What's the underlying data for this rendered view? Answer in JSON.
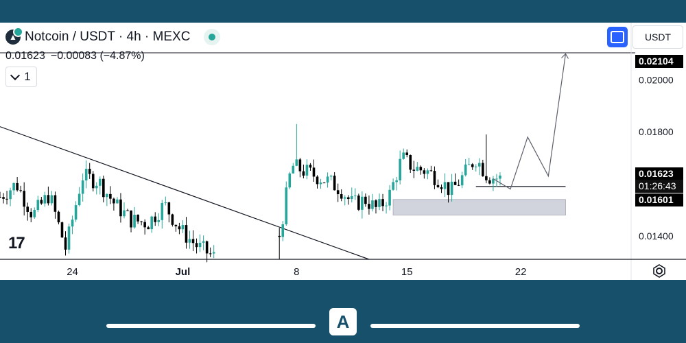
{
  "header": {
    "symbol_title": "Notcoin / USDT · 4h · MEXC",
    "price": "0.01623",
    "change": "−0.00083 (−4.87%)",
    "indicator_count": "1",
    "currency": "USDT"
  },
  "colors": {
    "up": "#26a69a",
    "down": "#000000",
    "frame": "#16506b",
    "accent": "#2962ff"
  },
  "icons": [
    "notcoin-icon",
    "live-status-icon",
    "fullscreen-icon",
    "chevron-down-icon",
    "settings-icon",
    "tradingview-logo",
    "app-logo"
  ],
  "chart_data": {
    "type": "candlestick",
    "title": "Notcoin / USDT · 4h · MEXC",
    "ylim": [
      0.0131,
      0.0222
    ],
    "yticks": [
      "0.02000",
      "0.01800",
      "0.01600",
      "0.01400"
    ],
    "ytick_values": [
      0.02,
      0.018,
      0.016,
      0.014
    ],
    "xticks": [
      "24",
      "Jul",
      "8",
      "15",
      "22"
    ],
    "x_index_range": [
      0,
      183
    ],
    "xtick_index": [
      21,
      53,
      86,
      118,
      151
    ],
    "price_labels": [
      {
        "name": "target",
        "value": 0.02104,
        "text": "0.02104"
      },
      {
        "name": "last",
        "value": 0.01623,
        "text": "0.01623"
      },
      {
        "name": "level",
        "value": 0.01601,
        "text": "0.01601"
      }
    ],
    "countdown": "01:26:43",
    "resistance_line": {
      "from": {
        "x": 0,
        "y": 0.0182
      },
      "to": {
        "x": 107,
        "y": 0.0131
      }
    },
    "horizontal_line": {
      "x_from": 138,
      "x_to": 164,
      "y": 0.0159
    },
    "support_zone": {
      "x_from": 114,
      "x_to": 164,
      "y_low": 0.0148,
      "y_high": 0.0154
    },
    "projection_path": [
      [
        143,
        0.0162
      ],
      [
        148,
        0.0158
      ],
      [
        153,
        0.0178
      ],
      [
        159,
        0.0163
      ],
      [
        164,
        0.021
      ]
    ],
    "segments": [
      {
        "x0": 0,
        "x1": 62,
        "start": 0.0155,
        "waypoints": [
          0.016,
          0.0148,
          0.0156,
          0.0135,
          0.0163,
          0.0161,
          0.0152,
          0.0146,
          0.0145,
          0.0152,
          0.0142,
          0.0136,
          0.0132
        ]
      },
      {
        "x0": 81,
        "x1": 145,
        "start": 0.014,
        "waypoints": [
          0.0167,
          0.0165,
          0.0163,
          0.0161,
          0.0158,
          0.0152,
          0.0154,
          0.015,
          0.0156,
          0.017,
          0.0166,
          0.0165,
          0.0162,
          0.0157,
          0.0163,
          0.017,
          0.0163,
          0.0162
        ]
      }
    ],
    "spikes": [
      {
        "x": 86,
        "high": 0.0183
      },
      {
        "x": 141,
        "high": 0.0179
      },
      {
        "x": 81,
        "low": 0.0131
      }
    ]
  }
}
